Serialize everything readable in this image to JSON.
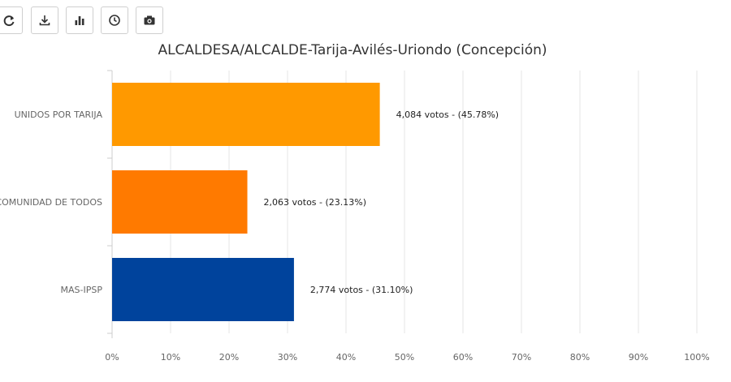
{
  "toolbar": {
    "buttons": [
      {
        "icon": "refresh-icon"
      },
      {
        "icon": "download-icon"
      },
      {
        "icon": "bar-chart-icon"
      },
      {
        "icon": "clock-icon"
      },
      {
        "icon": "camera-icon"
      }
    ]
  },
  "chart_data": {
    "type": "bar",
    "orientation": "horizontal",
    "title": "ALCALDESA/ALCALDE-Tarija-Avilés-Uriondo (Concepción)",
    "categories": [
      "UNIDOS POR TARIJA",
      "COMUNIDAD DE TODOS",
      "MAS-IPSP"
    ],
    "values": [
      45.78,
      23.13,
      31.1
    ],
    "votes": [
      "4,084",
      "2,063",
      "2,774"
    ],
    "data_labels": [
      "4,084 votos - (45.78%)",
      "2,063 votos - (23.13%)",
      "2,774 votos - (31.10%)"
    ],
    "colors": [
      "#ff9900",
      "#ff7a00",
      "#00439c"
    ],
    "xlim": [
      0,
      100
    ],
    "xticks": [
      "0%",
      "10%",
      "20%",
      "30%",
      "40%",
      "50%",
      "60%",
      "70%",
      "80%",
      "90%",
      "100%"
    ],
    "grid": true
  }
}
